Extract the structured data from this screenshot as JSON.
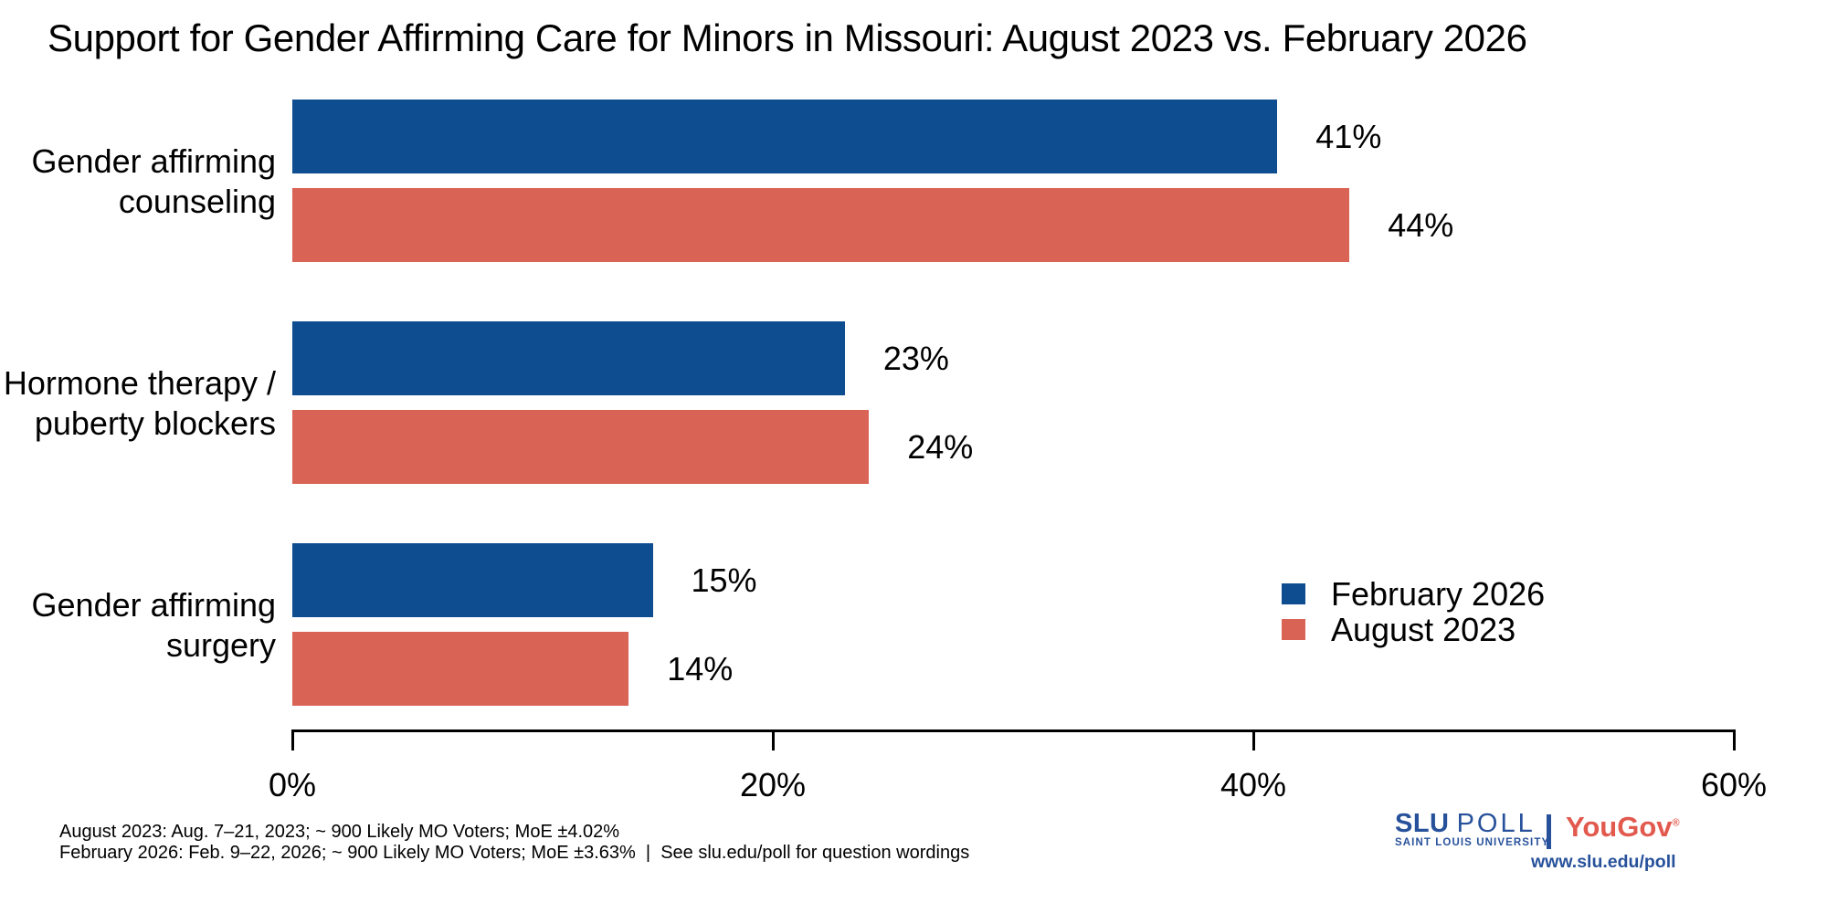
{
  "chart_data": {
    "type": "bar",
    "orientation": "horizontal",
    "title": "Support for Gender Affirming Care for Minors in Missouri: August 2023 vs. February 2026",
    "categories": [
      "Gender affirming counseling",
      "Hormone therapy / puberty blockers",
      "Gender affirming surgery"
    ],
    "category_label_lines": [
      [
        "Gender affirming",
        "counseling"
      ],
      [
        "Hormone therapy /",
        "puberty blockers"
      ],
      [
        "Gender affirming",
        "surgery"
      ]
    ],
    "series": [
      {
        "name": "February 2026",
        "color": "#0E4D8F",
        "values": [
          41,
          23,
          15
        ],
        "value_labels": [
          "41%",
          "23%",
          "15%"
        ]
      },
      {
        "name": "August 2023",
        "color": "#D96355",
        "values": [
          44,
          24,
          14
        ],
        "value_labels": [
          "44%",
          "24%",
          "14%"
        ]
      }
    ],
    "xlim": [
      0,
      60
    ],
    "x_ticks": [
      {
        "value": 0,
        "label": "0%"
      },
      {
        "value": 20,
        "label": "20%"
      },
      {
        "value": 40,
        "label": "40%"
      },
      {
        "value": 60,
        "label": "60%"
      }
    ],
    "grid": false,
    "legend_position": "middle-right",
    "axis_color": "#000000",
    "background": "#FFFFFF"
  },
  "footnotes": {
    "line1": "August 2023: Aug. 7–21, 2023; ~ 900 Likely MO Voters; MoE ±4.02%",
    "line2": "February 2026: Feb. 9–22, 2026; ~ 900 Likely MO Voters; MoE ±3.63%  |  See slu.edu/poll for question wordings"
  },
  "branding": {
    "slu_poll": {
      "name_bold": "SLU",
      "name_light": "POLL",
      "subtitle": "SAINT LOUIS UNIVERSITY.",
      "url": "www.slu.edu/poll",
      "color": "#27519B"
    },
    "yougov": {
      "name": "YouGov",
      "registered_mark": "®",
      "color": "#E2594E"
    }
  }
}
